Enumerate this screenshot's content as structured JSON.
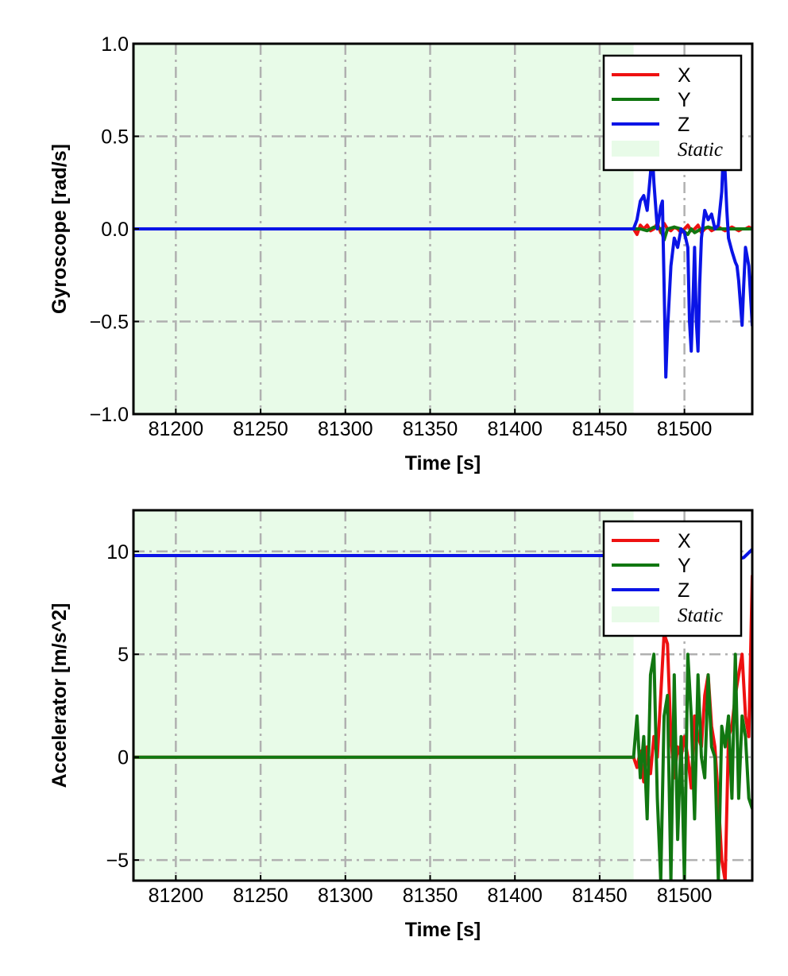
{
  "chart_data": [
    {
      "type": "line",
      "xlabel": "Time [s]",
      "ylabel": "Gyroscope [rad/s]",
      "xlim": [
        81175,
        81540
      ],
      "ylim": [
        -1.0,
        1.0
      ],
      "xticks": [
        81200,
        81250,
        81300,
        81350,
        81400,
        81450,
        81500
      ],
      "yticks": [
        -1.0,
        -0.5,
        0.0,
        0.5,
        1.0
      ],
      "ytick_labels": [
        "−1.0",
        "−0.5",
        "0.0",
        "0.5",
        "1.0"
      ],
      "grid": true,
      "legend_position": "top-right",
      "static_region": {
        "label": "Static",
        "x": [
          81175,
          81470
        ],
        "color": "#e8fbe8"
      },
      "series": [
        {
          "name": "X",
          "color": "#ee1111",
          "static_value": 0.0,
          "x": [
            81470,
            81472,
            81474,
            81476,
            81478,
            81480,
            81482,
            81484,
            81486,
            81488,
            81490,
            81492,
            81494,
            81496,
            81498,
            81500,
            81502,
            81504,
            81506,
            81508,
            81510,
            81512,
            81514,
            81516,
            81518,
            81520,
            81522,
            81524,
            81526,
            81528,
            81530,
            81532,
            81534,
            81536,
            81538,
            81540
          ],
          "y": [
            0.0,
            -0.03,
            0.02,
            0.0,
            0.02,
            -0.01,
            0.0,
            0.03,
            -0.02,
            0.03,
            0.0,
            -0.01,
            0.01,
            0.0,
            -0.02,
            0.0,
            0.02,
            -0.01,
            0.0,
            0.02,
            -0.02,
            0.0,
            0.01,
            -0.01,
            0.0,
            0.01,
            0.0,
            -0.01,
            0.0,
            0.01,
            0.0,
            -0.01,
            0.0,
            0.0,
            0.01,
            0.0
          ]
        },
        {
          "name": "Y",
          "color": "#117711",
          "static_value": 0.0,
          "x": [
            81470,
            81474,
            81478,
            81482,
            81486,
            81488,
            81490,
            81494,
            81498,
            81502,
            81504,
            81506,
            81510,
            81514,
            81518,
            81522,
            81526,
            81530,
            81534,
            81540
          ],
          "y": [
            0.0,
            0.0,
            -0.01,
            0.01,
            0.0,
            -0.06,
            0.0,
            0.01,
            0.0,
            -0.03,
            0.0,
            -0.02,
            0.0,
            0.01,
            0.0,
            0.0,
            0.0,
            0.0,
            0.0,
            0.0
          ]
        },
        {
          "name": "Z",
          "color": "#0a14e6",
          "static_value": 0.0,
          "x": [
            81470,
            81472,
            81474,
            81476,
            81478,
            81480,
            81481,
            81482,
            81484,
            81486,
            81487,
            81488,
            81489,
            81490,
            81492,
            81494,
            81496,
            81498,
            81500,
            81502,
            81503,
            81504,
            81505,
            81506,
            81507,
            81508,
            81509,
            81510,
            81512,
            81514,
            81516,
            81518,
            81520,
            81522,
            81523,
            81524,
            81525,
            81526,
            81528,
            81530,
            81531,
            81532,
            81534,
            81535,
            81536,
            81537,
            81538,
            81540
          ],
          "y": [
            0.0,
            0.05,
            0.15,
            0.18,
            0.1,
            0.3,
            0.42,
            0.25,
            0.0,
            0.12,
            0.15,
            -0.3,
            -0.8,
            -0.55,
            -0.2,
            -0.05,
            -0.1,
            0.0,
            -0.02,
            -0.1,
            -0.5,
            -0.66,
            -0.4,
            -0.1,
            -0.5,
            -0.66,
            -0.3,
            -0.05,
            0.1,
            0.05,
            0.08,
            0.0,
            0.02,
            0.2,
            0.43,
            0.3,
            0.1,
            -0.05,
            -0.12,
            -0.18,
            -0.2,
            -0.28,
            -0.52,
            -0.3,
            -0.1,
            -0.15,
            -0.2,
            -0.52
          ]
        }
      ]
    },
    {
      "type": "line",
      "xlabel": "Time [s]",
      "ylabel": "Accelerator [m/s^2]",
      "xlim": [
        81175,
        81540
      ],
      "ylim": [
        -6.0,
        12.0
      ],
      "xticks": [
        81200,
        81250,
        81300,
        81350,
        81400,
        81450,
        81500
      ],
      "yticks": [
        -5,
        0,
        5,
        10
      ],
      "ytick_labels": [
        "−5",
        "0",
        "5",
        "10"
      ],
      "grid": true,
      "legend_position": "top-right",
      "static_region": {
        "label": "Static",
        "x": [
          81175,
          81470
        ],
        "color": "#e8fbe8"
      },
      "series": [
        {
          "name": "X",
          "color": "#ee1111",
          "static_value": 0.0,
          "x": [
            81470,
            81472,
            81474,
            81476,
            81478,
            81480,
            81482,
            81484,
            81486,
            81488,
            81490,
            81492,
            81494,
            81496,
            81498,
            81500,
            81502,
            81504,
            81506,
            81508,
            81510,
            81512,
            81514,
            81516,
            81518,
            81520,
            81522,
            81524,
            81526,
            81528,
            81530,
            81532,
            81534,
            81536,
            81538,
            81540
          ],
          "y": [
            0.0,
            -0.5,
            0.3,
            -1.2,
            0.5,
            -0.8,
            1.0,
            0.0,
            3.0,
            6.0,
            5.5,
            1.0,
            -1.0,
            0.5,
            0.0,
            1.0,
            0.0,
            -1.5,
            2.0,
            1.0,
            0.5,
            3.0,
            4.0,
            1.5,
            0.5,
            -2.0,
            -5.0,
            -6.0,
            1.0,
            1.5,
            3.0,
            4.0,
            5.0,
            2.0,
            1.0,
            8.8
          ]
        },
        {
          "name": "Y",
          "color": "#117711",
          "static_value": 0.0,
          "x": [
            81470,
            81472,
            81474,
            81476,
            81478,
            81480,
            81482,
            81484,
            81486,
            81488,
            81490,
            81492,
            81494,
            81496,
            81498,
            81500,
            81502,
            81504,
            81506,
            81508,
            81510,
            81512,
            81514,
            81516,
            81518,
            81520,
            81522,
            81524,
            81526,
            81528,
            81530,
            81532,
            81534,
            81536,
            81538,
            81540
          ],
          "y": [
            0.0,
            2.0,
            -1.0,
            1.0,
            -3.0,
            4.0,
            5.0,
            -2.0,
            -6.0,
            2.0,
            3.0,
            -6.0,
            4.0,
            -4.0,
            1.0,
            -6.0,
            5.0,
            2.0,
            -3.0,
            4.0,
            0.0,
            -1.0,
            4.0,
            0.5,
            0.0,
            -6.0,
            1.5,
            0.5,
            2.0,
            -2.0,
            5.0,
            -2.0,
            2.0,
            1.0,
            -2.0,
            -2.5
          ]
        },
        {
          "name": "Z",
          "color": "#0a14e6",
          "static_value": 9.8,
          "x": [
            81470,
            81480,
            81490,
            81500,
            81510,
            81520,
            81525,
            81530,
            81535,
            81540
          ],
          "y": [
            9.8,
            9.5,
            9.8,
            9.6,
            9.9,
            9.7,
            9.9,
            9.6,
            9.7,
            10.1
          ]
        }
      ]
    }
  ]
}
